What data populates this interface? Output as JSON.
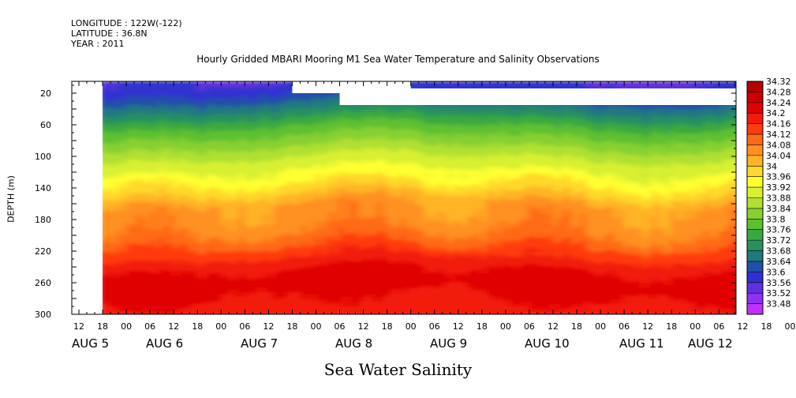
{
  "header": {
    "longitude": "LONGITUDE : 122W(-122)",
    "latitude": "LATITUDE : 36.8N",
    "year": "YEAR : 2011"
  },
  "chart_data": {
    "type": "heatmap",
    "title": "Hourly Gridded MBARI Mooring M1 Sea Water Temperature and Salinity Observations",
    "xlabel": "Sea Water Salinity",
    "ylabel": "DEPTH (m)",
    "yticks": [
      20,
      60,
      100,
      140,
      180,
      220,
      260,
      300
    ],
    "ylim": [
      300,
      5
    ],
    "hour_ticks": [
      "12",
      "18",
      "00",
      "06",
      "12",
      "18",
      "00",
      "06",
      "12",
      "18",
      "00",
      "06",
      "12",
      "18",
      "00",
      "06",
      "12",
      "18",
      "00",
      "06",
      "12",
      "18",
      "00",
      "06",
      "12",
      "18",
      "00",
      "06",
      "12",
      "18",
      "00",
      "06"
    ],
    "day_labels": [
      "AUG 5",
      "AUG 6",
      "AUG 7",
      "AUG 8",
      "AUG 9",
      "AUG 10",
      "AUG 11",
      "AUG 12"
    ],
    "colorbar": {
      "levels": [
        "34.32",
        "34.28",
        "34.24",
        "34.2",
        "34.16",
        "34.12",
        "34.08",
        "34.04",
        "34",
        "33.96",
        "33.92",
        "33.88",
        "33.84",
        "33.8",
        "33.76",
        "33.72",
        "33.68",
        "33.64",
        "33.6",
        "33.56",
        "33.52",
        "33.48"
      ],
      "colors": [
        "#b00000",
        "#cc0000",
        "#e00000",
        "#f21a0a",
        "#ff3a10",
        "#ff6a18",
        "#ff9020",
        "#ffb428",
        "#ffd82c",
        "#ffff30",
        "#d8f030",
        "#b0e030",
        "#88d030",
        "#5ec030",
        "#3aa840",
        "#289060",
        "#207880",
        "#2050a8",
        "#3030d0",
        "#6030e0",
        "#9030f0",
        "#c030ff"
      ]
    },
    "data_start": "AUG 5 18:00",
    "data_end": "AUG 12 12:00",
    "profile_depths": [
      5,
      20,
      40,
      60,
      80,
      100,
      120,
      140,
      160,
      180,
      200,
      220,
      240,
      260,
      280,
      300
    ],
    "profile_values": [
      33.6,
      33.64,
      33.72,
      33.8,
      33.86,
      33.92,
      33.97,
      34.02,
      34.09,
      34.1,
      34.13,
      34.18,
      34.24,
      34.26,
      34.24,
      34.22
    ],
    "missing_regions": [
      {
        "from": "AUG 7 18:00",
        "to": "AUG 8 06:00",
        "depth_from": 5,
        "depth_to": 20
      },
      {
        "from": "AUG 8 06:00",
        "to": "AUG 12 12:00",
        "depth_from": 14,
        "depth_to": 35
      },
      {
        "from": "AUG 8 06:00",
        "to": "AUG 9 00:00",
        "depth_from": 5,
        "depth_to": 14
      }
    ]
  }
}
